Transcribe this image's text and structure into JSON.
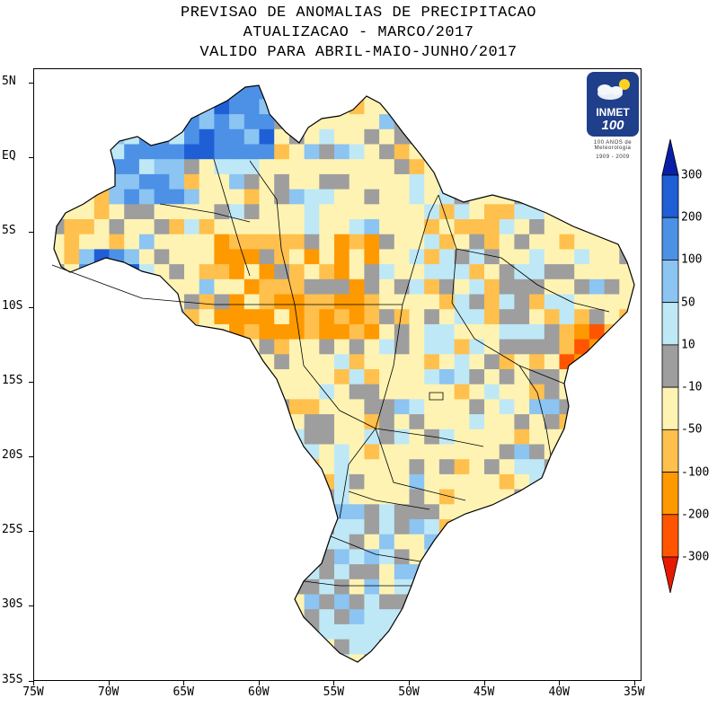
{
  "title": {
    "line1": "PREVISAO DE ANOMALIAS DE PRECIPITACAO",
    "line2": "ATUALIZACAO - MARCO/2017",
    "line3": "VALIDO PARA ABRIL-MAIO-JUNHO/2017"
  },
  "axes": {
    "lat_labels": [
      "5N",
      "EQ",
      "5S",
      "10S",
      "15S",
      "20S",
      "25S",
      "30S",
      "35S"
    ],
    "lon_labels": [
      "75W",
      "70W",
      "65W",
      "60W",
      "55W",
      "50W",
      "45W",
      "40W",
      "35W"
    ]
  },
  "logo": {
    "name": "INMET",
    "number": "100",
    "subtitle": "100 ANOS de Meteorologia",
    "years": "1909 - 2009",
    "icon": "cloud-sun-icon"
  },
  "legend": {
    "labels": [
      "300",
      "200",
      "100",
      "50",
      "10",
      "-10",
      "-50",
      "-100",
      "-200",
      "-300"
    ],
    "colors": [
      "#0a1fa8",
      "#1f5fd6",
      "#4d91e6",
      "#8cc4f2",
      "#bfe8f6",
      "#9e9e9e",
      "#fff3b3",
      "#ffc04d",
      "#ff9900",
      "#ff5500",
      "#e61a00"
    ]
  },
  "map_colors": {
    "wet_strong": "#1f5fd6",
    "wet": "#4d91e6",
    "wet_light": "#8cc4f2",
    "wet_faint": "#bfe8f6",
    "neutral": "#9e9e9e",
    "dry_faint": "#fff3b3",
    "dry": "#ffc04d",
    "dry_strong": "#ff9900",
    "dry_extreme": "#ff5500"
  }
}
